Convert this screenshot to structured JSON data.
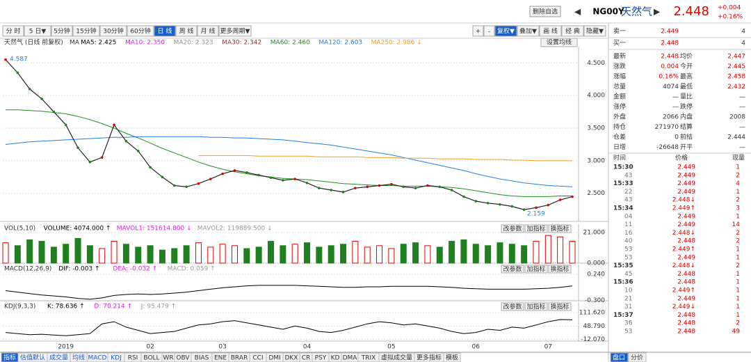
{
  "header": {
    "delete_button": "删除自选",
    "code": "NG00Y",
    "name": "天然气",
    "price": "2.448",
    "change": "+0.004",
    "change_pct": "+0.16%"
  },
  "toolbar": {
    "buttons": [
      "分 时",
      "5 日▼",
      "5分钟",
      "15分钟",
      "30分钟",
      "60分钟",
      "日 线",
      "周 线",
      "月 线",
      "更多周期▼"
    ],
    "active_index": 6,
    "right_buttons": [
      "+",
      "-",
      "复权▼",
      "叠加▼",
      "画 线",
      "经 典",
      "隐藏▼"
    ]
  },
  "main_chart": {
    "title": "天然气 (日线 前复权)",
    "ma_prefix": "MA",
    "legend": [
      {
        "label": "MA5: 2.425",
        "color": "#000000"
      },
      {
        "label": "MA10: 2.350",
        "color": "#e020e0"
      },
      {
        "label": "MA20: 2.323",
        "color": "#909090"
      },
      {
        "label": "MA30: 2.342",
        "color": "#a03030"
      },
      {
        "label": "MA60: 2.460",
        "color": "#209020"
      },
      {
        "label": "MA120: 2.603",
        "color": "#2080e0"
      },
      {
        "label": "MA250: 2.986 ↓",
        "color": "#f0a020"
      }
    ],
    "settings_button": "设置均线",
    "high_label": "4.587",
    "low_label": "2.159",
    "ylim": [
      2.07,
      4.75
    ],
    "yticks": [
      {
        "value": 2.5,
        "label": "2.500"
      },
      {
        "value": 3,
        "label": "3.000"
      },
      {
        "value": 3.5,
        "label": "3.500"
      },
      {
        "value": 4,
        "label": "4.000"
      },
      {
        "value": 4.5,
        "label": "4.500"
      }
    ],
    "close": [
      4.55,
      4.35,
      4.1,
      3.95,
      3.75,
      3.55,
      3.2,
      2.98,
      3.05,
      3.55,
      3.3,
      3.15,
      2.9,
      2.75,
      2.62,
      2.6,
      2.65,
      2.72,
      2.8,
      2.85,
      2.82,
      2.78,
      2.74,
      2.7,
      2.72,
      2.66,
      2.58,
      2.55,
      2.52,
      2.58,
      2.6,
      2.62,
      2.64,
      2.6,
      2.58,
      2.62,
      2.6,
      2.55,
      2.45,
      2.38,
      2.35,
      2.33,
      2.3,
      2.25,
      2.28,
      2.32,
      2.4,
      2.448
    ],
    "ma_lines": [
      {
        "color": "#209020",
        "values": [
          3.78,
          3.78,
          3.77,
          3.76,
          3.74,
          3.72,
          3.68,
          3.63,
          3.57,
          3.5,
          3.42,
          3.35,
          3.27,
          3.19,
          3.12,
          3.05,
          2.98,
          2.92,
          2.87,
          2.83,
          2.8,
          2.77,
          2.75,
          2.73,
          2.72,
          2.71,
          2.69,
          2.67,
          2.65,
          2.64,
          2.63,
          2.62,
          2.62,
          2.61,
          2.61,
          2.61,
          2.6,
          2.59,
          2.57,
          2.54,
          2.51,
          2.48,
          2.46,
          2.45,
          2.45,
          2.45,
          2.46,
          2.46
        ]
      },
      {
        "color": "#2080e0",
        "values": [
          3.25,
          3.27,
          3.29,
          3.3,
          3.31,
          3.32,
          3.33,
          3.34,
          3.35,
          3.36,
          3.36,
          3.37,
          3.37,
          3.37,
          3.37,
          3.37,
          3.37,
          3.36,
          3.36,
          3.35,
          3.35,
          3.34,
          3.33,
          3.32,
          3.3,
          3.28,
          3.26,
          3.24,
          3.21,
          3.18,
          3.15,
          3.12,
          3.09,
          3.05,
          3.01,
          2.97,
          2.93,
          2.89,
          2.85,
          2.8,
          2.76,
          2.72,
          2.69,
          2.66,
          2.64,
          2.62,
          2.61,
          2.6
        ]
      },
      {
        "color": "#f0a020",
        "values": [
          null,
          null,
          null,
          null,
          null,
          null,
          null,
          null,
          null,
          null,
          null,
          null,
          null,
          null,
          null,
          null,
          3.08,
          3.08,
          3.08,
          3.08,
          3.08,
          3.07,
          3.07,
          3.07,
          3.07,
          3.07,
          3.06,
          3.06,
          3.06,
          3.06,
          3.05,
          3.05,
          3.05,
          3.04,
          3.04,
          3.04,
          3.03,
          3.03,
          3.03,
          3.02,
          3.02,
          3.02,
          3.01,
          3.01,
          3.0,
          3.0,
          3.0,
          3.0
        ]
      }
    ]
  },
  "dates": [
    null,
    null,
    null,
    null,
    null,
    "2019",
    null,
    null,
    null,
    null,
    null,
    null,
    "02",
    null,
    null,
    null,
    null,
    null,
    "03",
    null,
    null,
    null,
    null,
    null,
    null,
    "04",
    null,
    null,
    null,
    null,
    null,
    null,
    "05",
    null,
    null,
    null,
    null,
    null,
    null,
    "06",
    null,
    null,
    null,
    null,
    null,
    "07",
    null,
    null
  ],
  "panel_buttons": [
    "改参数",
    "加指标",
    "换指标"
  ],
  "vol_panel": {
    "labels": [
      "VOL(5,10)",
      "VOLUME: 4074.000 ↑",
      "MAVOL1: 151614.800 ↓",
      "MAVOL2: 119889.500 ↓"
    ],
    "ylim": [
      0,
      21
    ],
    "yticks": [
      {
        "value": 0,
        "label": "0.000"
      },
      {
        "value": 21,
        "label": "21.000"
      }
    ],
    "values": [
      14,
      12,
      16,
      15,
      11,
      13,
      17,
      12,
      10,
      15,
      13,
      11,
      12,
      9,
      10,
      12,
      14,
      11,
      13,
      12,
      10,
      11,
      15,
      12,
      13,
      14,
      11,
      12,
      13,
      15,
      11,
      12,
      10,
      13,
      14,
      12,
      11,
      15,
      16,
      13,
      12,
      14,
      13,
      12,
      15,
      19,
      18,
      15
    ]
  },
  "macd_panel": {
    "labels": [
      "MACD(12,26,9)",
      "DIF: -0.003 ↑",
      "DEA: -0.032 ↑",
      "MACD: 0.059 ↑"
    ],
    "ylim": [
      -0.31,
      0.27
    ],
    "yticks": [
      {
        "value": -0.3,
        "label": "-0.300"
      },
      {
        "value": 0.24,
        "label": "0.240"
      }
    ],
    "dif": [
      -0.1,
      -0.13,
      -0.16,
      -0.19,
      -0.21,
      -0.23,
      -0.26,
      -0.28,
      -0.25,
      -0.2,
      -0.18,
      -0.17,
      -0.18,
      -0.17,
      -0.15,
      -0.13,
      -0.1,
      -0.07,
      -0.04,
      -0.02,
      0.0,
      0.01,
      0.01,
      0.01,
      0.01,
      0.0,
      -0.01,
      -0.02,
      -0.03,
      -0.03,
      -0.02,
      -0.02,
      -0.01,
      -0.01,
      -0.01,
      -0.01,
      -0.02,
      -0.03,
      -0.05,
      -0.06,
      -0.07,
      -0.07,
      -0.07,
      -0.07,
      -0.06,
      -0.05,
      -0.03,
      -0.003
    ]
  },
  "kdj_panel": {
    "labels": [
      "KDJ(9,3,3)",
      "K: 78.636 ↑",
      "D: 70.214 ↑",
      "J: 95.479 ↑"
    ],
    "ylim": [
      -20,
      122
    ],
    "yticks": [
      {
        "value": -12.07,
        "label": "-12.070"
      },
      {
        "value": 48.79,
        "label": "48.790"
      },
      {
        "value": 111.62,
        "label": "111.620"
      }
    ],
    "k": [
      20,
      15,
      10,
      12,
      8,
      5,
      10,
      15,
      60,
      70,
      45,
      30,
      15,
      20,
      25,
      40,
      55,
      60,
      70,
      75,
      65,
      55,
      45,
      35,
      50,
      40,
      25,
      20,
      30,
      45,
      60,
      70,
      65,
      55,
      60,
      50,
      40,
      25,
      15,
      20,
      35,
      30,
      45,
      40,
      55,
      70,
      80,
      78.636
    ]
  },
  "bottom_tabs": [
    "指标",
    "估值默认",
    "成交量",
    "均线",
    "MACD",
    "KDJ",
    "RSI",
    "BOLL",
    "WR",
    "OBV",
    "BIAS",
    "ENE",
    "BRAR",
    "CCI",
    "DMI",
    "DKX",
    "CR",
    "PSY",
    "KD",
    "DMA",
    "TRIX",
    "虚拟成交量",
    "更多指标",
    "模板"
  ],
  "quote": {
    "orders": [
      [
        "卖一",
        "2.449",
        "4"
      ],
      [
        "买一",
        "2.448",
        "4"
      ]
    ],
    "stats": [
      [
        "最新",
        "2.448",
        "均价",
        "2.447"
      ],
      [
        "涨跌",
        "0.004",
        "今开",
        "2.445"
      ],
      [
        "涨幅",
        "0.16%",
        "最高",
        "2.458"
      ],
      [
        "总量",
        "4074",
        "最低",
        "2.432"
      ],
      [
        "金额",
        "—",
        "量比",
        "—"
      ],
      [
        "涨停",
        "—",
        "跌停",
        "—"
      ],
      [
        "外盘",
        "2066",
        "内盘",
        "2008"
      ],
      [
        "持仓",
        "271970",
        "结算",
        "—"
      ],
      [
        "仓差",
        "0",
        "前结",
        "2.444"
      ],
      [
        "日增",
        "-26648",
        "开平",
        "—"
      ]
    ],
    "trade_header": [
      "时间",
      "价格",
      "现量"
    ],
    "trades": [
      [
        "15:30",
        "2.449",
        "1"
      ],
      [
        "43",
        "2.449",
        "2"
      ],
      [
        "15:33",
        "2.449",
        "4"
      ],
      [
        "22",
        "2.449",
        "1"
      ],
      [
        "43",
        "2.448↓",
        "2"
      ],
      [
        "15:34",
        "2.449↑",
        "3"
      ],
      [
        "04",
        "2.449",
        "1"
      ],
      [
        "11",
        "2.449",
        "14"
      ],
      [
        "16",
        "2.448↓",
        "2"
      ],
      [
        "40",
        "2.448",
        "2"
      ],
      [
        "53",
        "2.449↑",
        "1"
      ],
      [
        "53",
        "2.449",
        "1"
      ],
      [
        "15:35",
        "2.448↓",
        "2"
      ],
      [
        "45",
        "2.448",
        "1"
      ],
      [
        "15:36",
        "2.448",
        "1"
      ],
      [
        "10",
        "2.449↑",
        "1"
      ],
      [
        "21",
        "2.449",
        "1"
      ],
      [
        "31",
        "2.449↓",
        "1"
      ],
      [
        "15:37",
        "2.448",
        "1"
      ],
      [
        "36",
        "2.448",
        "2"
      ],
      [
        "53",
        "2.448",
        "49"
      ]
    ],
    "tabs": [
      "盘口",
      "分价"
    ]
  }
}
